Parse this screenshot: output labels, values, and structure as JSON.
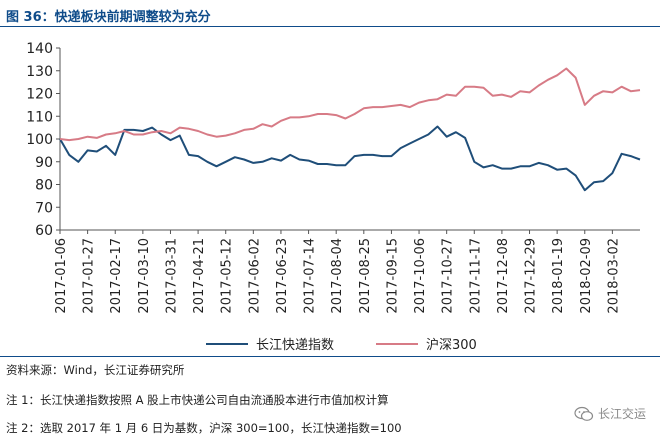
{
  "title": "图 36：快递板块前期调整较为充分",
  "colors": {
    "title": "#0f4c8a",
    "series1": "#1f4e79",
    "series2": "#d77b86",
    "rule": "#0f4c8a"
  },
  "legend": {
    "s1": "长江快递指数",
    "s2": "沪深300"
  },
  "notes": {
    "source": "资料来源：Wind，长江证券研究所",
    "note1": "注 1：长江快递指数按照 A 股上市快递公司自由流通股本进行市值加权计算",
    "note2": "注 2：选取 2017 年 1 月 6 日为基数，沪深 300=100，长江快递指数=100"
  },
  "watermark": {
    "text": "长江交运",
    "icon": "wechat-icon"
  },
  "chart_data": {
    "type": "line",
    "ylim": [
      60,
      140
    ],
    "yticks": [
      60,
      70,
      80,
      90,
      100,
      110,
      120,
      130,
      140
    ],
    "tick_labels": [
      "2017-01-06",
      "2017-01-27",
      "2017-02-17",
      "2017-03-10",
      "2017-03-31",
      "2017-04-21",
      "2017-05-12",
      "2017-06-02",
      "2017-06-23",
      "2017-07-14",
      "2017-08-04",
      "2017-08-25",
      "2017-09-15",
      "2017-10-06",
      "2017-10-27",
      "2017-11-17",
      "2017-12-08",
      "2017-12-29",
      "2018-01-19",
      "2018-02-09",
      "2018-03-02"
    ],
    "x": [
      "2017-01-06",
      "2017-01-13",
      "2017-01-20",
      "2017-01-27",
      "2017-02-03",
      "2017-02-10",
      "2017-02-17",
      "2017-02-24",
      "2017-03-03",
      "2017-03-10",
      "2017-03-17",
      "2017-03-24",
      "2017-03-31",
      "2017-04-07",
      "2017-04-14",
      "2017-04-21",
      "2017-04-28",
      "2017-05-05",
      "2017-05-12",
      "2017-05-19",
      "2017-05-26",
      "2017-06-02",
      "2017-06-09",
      "2017-06-16",
      "2017-06-23",
      "2017-06-30",
      "2017-07-07",
      "2017-07-14",
      "2017-07-21",
      "2017-07-28",
      "2017-08-04",
      "2017-08-11",
      "2017-08-18",
      "2017-08-25",
      "2017-09-01",
      "2017-09-08",
      "2017-09-15",
      "2017-09-22",
      "2017-09-29",
      "2017-10-06",
      "2017-10-13",
      "2017-10-20",
      "2017-10-27",
      "2017-11-03",
      "2017-11-10",
      "2017-11-17",
      "2017-11-24",
      "2017-12-01",
      "2017-12-08",
      "2017-12-15",
      "2017-12-22",
      "2017-12-29",
      "2018-01-05",
      "2018-01-12",
      "2018-01-19",
      "2018-01-26",
      "2018-02-02",
      "2018-02-09",
      "2018-02-16",
      "2018-02-23",
      "2018-03-02",
      "2018-03-09",
      "2018-03-16",
      "2018-03-23"
    ],
    "series": [
      {
        "name": "长江快递指数",
        "color": "#1f4e79",
        "values": [
          100,
          93,
          90,
          95,
          94.5,
          97,
          93,
          104,
          104,
          103.5,
          105,
          102,
          99.5,
          101.5,
          93,
          92.5,
          90,
          88,
          90,
          92,
          91,
          89.5,
          90,
          91.5,
          90.5,
          93,
          91,
          90.5,
          89,
          89,
          88.5,
          88.5,
          92.5,
          93,
          93,
          92.5,
          92.5,
          96,
          98,
          100,
          102,
          105.5,
          101,
          103,
          100.5,
          90,
          87.5,
          88.5,
          87,
          87,
          88,
          88,
          89.5,
          88.5,
          86.5,
          87,
          84,
          77.5,
          81,
          81.5,
          85,
          93.5,
          92.5,
          91
        ]
      },
      {
        "name": "沪深300",
        "color": "#d77b86",
        "values": [
          100,
          99.5,
          100,
          101,
          100.5,
          102,
          102.5,
          103.5,
          102,
          102,
          103,
          103.5,
          102.5,
          105,
          104.5,
          103.5,
          102,
          101,
          101.5,
          102.5,
          104,
          104.5,
          106.5,
          105.5,
          108,
          109.5,
          109.5,
          110,
          111,
          111,
          110.5,
          109,
          111,
          113.5,
          114,
          114,
          114.5,
          115,
          114,
          116,
          117,
          117.5,
          119.5,
          119,
          123,
          123,
          122.5,
          119,
          119.5,
          118.5,
          121,
          120.5,
          123.5,
          126,
          128,
          131,
          127,
          115,
          119,
          121,
          120.5,
          123,
          121,
          121.5
        ]
      }
    ]
  }
}
